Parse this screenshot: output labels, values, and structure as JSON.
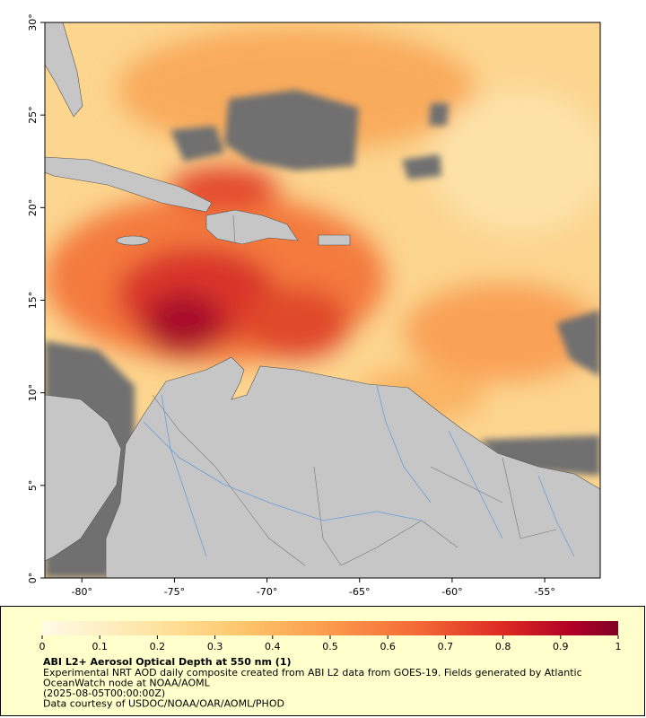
{
  "chart_data": {
    "type": "map",
    "xlim": [
      -82,
      -52
    ],
    "ylim": [
      0,
      30
    ],
    "xticks": [
      {
        "value": -80,
        "label": "-80°"
      },
      {
        "value": -75,
        "label": "-75°"
      },
      {
        "value": -70,
        "label": "-70°"
      },
      {
        "value": -65,
        "label": "-65°"
      },
      {
        "value": -60,
        "label": "-60°"
      },
      {
        "value": -55,
        "label": "-55°"
      }
    ],
    "yticks": [
      {
        "value": 0,
        "label": "0°"
      },
      {
        "value": 5,
        "label": "5°"
      },
      {
        "value": 10,
        "label": "10°"
      },
      {
        "value": 15,
        "label": "15°"
      },
      {
        "value": 20,
        "label": "20°"
      },
      {
        "value": 25,
        "label": "25°"
      },
      {
        "value": 30,
        "label": "30°"
      }
    ],
    "colorbar": {
      "lim": [
        0,
        1
      ],
      "ticks": [
        0,
        0.1,
        0.2,
        0.3,
        0.4,
        0.5,
        0.6,
        0.7,
        0.8,
        0.9,
        1
      ]
    },
    "title": "ABI L2+ Aerosol Optical Depth at 550 nm (1)",
    "caption_lines": [
      "Experimental NRT AOD daily composite created from ABI L2 data from GOES-19. Fields generated by Atlantic",
      "OceanWatch node at NOAA/AOML",
      "(2025-08-05T00:00:00Z)",
      "Data courtesy of USDOC/NOAA/OAR/AOML/PHOD"
    ]
  }
}
